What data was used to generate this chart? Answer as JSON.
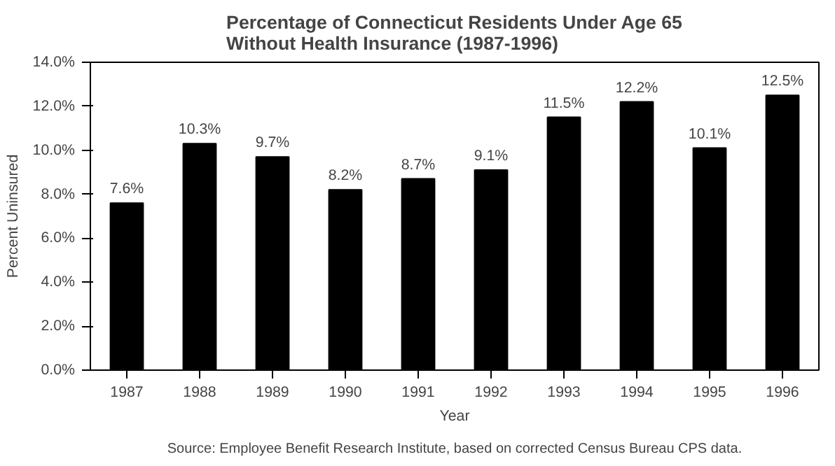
{
  "chart_data": {
    "type": "bar",
    "title": "Percentage of Connecticut Residents Under Age 65\nWithout Health Insurance (1987-1996)",
    "xlabel": "Year",
    "ylabel": "Percent Uninsured",
    "categories": [
      "1987",
      "1988",
      "1989",
      "1990",
      "1991",
      "1992",
      "1993",
      "1994",
      "1995",
      "1996"
    ],
    "values": [
      7.6,
      10.3,
      9.7,
      8.2,
      8.7,
      9.1,
      11.5,
      12.2,
      10.1,
      12.5
    ],
    "value_labels": [
      "7.6%",
      "10.3%",
      "9.7%",
      "8.2%",
      "8.7%",
      "9.1%",
      "11.5%",
      "12.2%",
      "10.1%",
      "12.5%"
    ],
    "color": "#000000",
    "ylim": [
      0,
      14
    ],
    "yticks": [
      {
        "value": 0,
        "label": "0.0%"
      },
      {
        "value": 2,
        "label": "2.0%"
      },
      {
        "value": 4,
        "label": "4.0%"
      },
      {
        "value": 6,
        "label": "6.0%"
      },
      {
        "value": 8,
        "label": "8.0%"
      },
      {
        "value": 10,
        "label": "10.0%"
      },
      {
        "value": 12,
        "label": "12.0%"
      },
      {
        "value": 14,
        "label": "14.0%"
      }
    ],
    "grid": false,
    "annotations": [
      "Source: Employee Benefit Research Institute, based on corrected Census Bureau CPS data."
    ]
  }
}
